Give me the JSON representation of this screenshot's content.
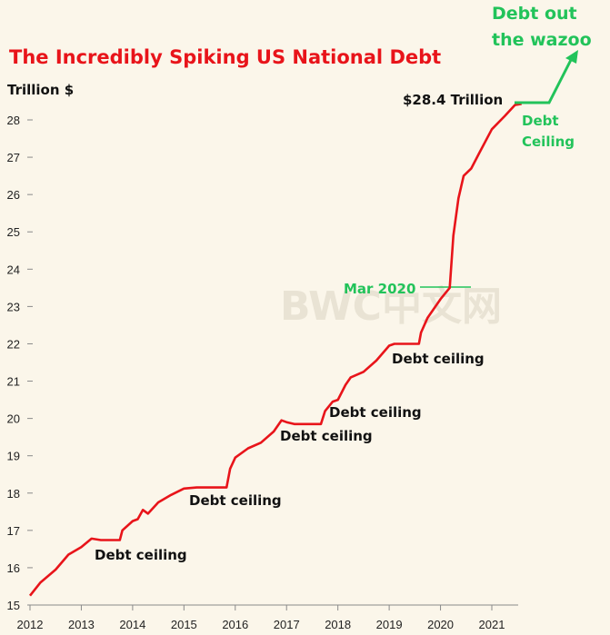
{
  "chart_data": {
    "type": "line",
    "title": "The Incredibly Spiking US National Debt",
    "ylabel": "Trillion $",
    "xlabel": "",
    "ylim": [
      15,
      28.7
    ],
    "xlim": [
      2012,
      2021.85
    ],
    "y_ticks": [
      15,
      16,
      17,
      18,
      19,
      20,
      21,
      22,
      23,
      24,
      25,
      26,
      27,
      28
    ],
    "x_ticks": [
      2012,
      2013,
      2014,
      2015,
      2016,
      2017,
      2018,
      2019,
      2020,
      2021
    ],
    "grid": false,
    "line_color": "#e8141a",
    "accent_color": "#22c35a",
    "series": [
      {
        "x": [
          2012.0,
          2012.2,
          2012.5,
          2012.75,
          2013.0,
          2013.2,
          2013.38,
          2013.75,
          2013.8,
          2014.0,
          2014.1,
          2014.2,
          2014.3,
          2014.5,
          2014.75,
          2015.0,
          2015.25,
          2015.5,
          2015.83,
          2015.9,
          2016.0,
          2016.25,
          2016.5,
          2016.75,
          2016.9,
          2017.0,
          2017.15,
          2017.67,
          2017.75,
          2017.9,
          2018.0,
          2018.15,
          2018.25,
          2018.5,
          2018.75,
          2019.0,
          2019.1,
          2019.58,
          2019.62,
          2019.75,
          2020.0,
          2020.18,
          2020.25,
          2020.35,
          2020.45,
          2020.6,
          2020.75,
          2021.0,
          2021.25,
          2021.45,
          2021.58
        ],
        "values": [
          15.25,
          15.6,
          15.95,
          16.35,
          16.55,
          16.78,
          16.74,
          16.74,
          17.0,
          17.25,
          17.3,
          17.55,
          17.45,
          17.75,
          17.95,
          18.12,
          18.15,
          18.15,
          18.15,
          18.65,
          18.95,
          19.2,
          19.35,
          19.65,
          19.95,
          19.9,
          19.85,
          19.85,
          20.2,
          20.45,
          20.5,
          20.9,
          21.1,
          21.25,
          21.55,
          21.95,
          22.0,
          22.0,
          22.3,
          22.7,
          23.2,
          23.5,
          24.9,
          25.9,
          26.5,
          26.7,
          27.1,
          27.75,
          28.1,
          28.4,
          28.43
        ]
      }
    ],
    "annotations": {
      "debt_ceiling": "Debt ceiling",
      "debt_ceiling_2": "Debt Ceiling",
      "peak_label": "$28.4 Trillion",
      "mar_2020": "Mar 2020",
      "wazoo_1": "Debt out",
      "wazoo_2": "the wazoo"
    }
  },
  "watermark": "BWC中文网"
}
